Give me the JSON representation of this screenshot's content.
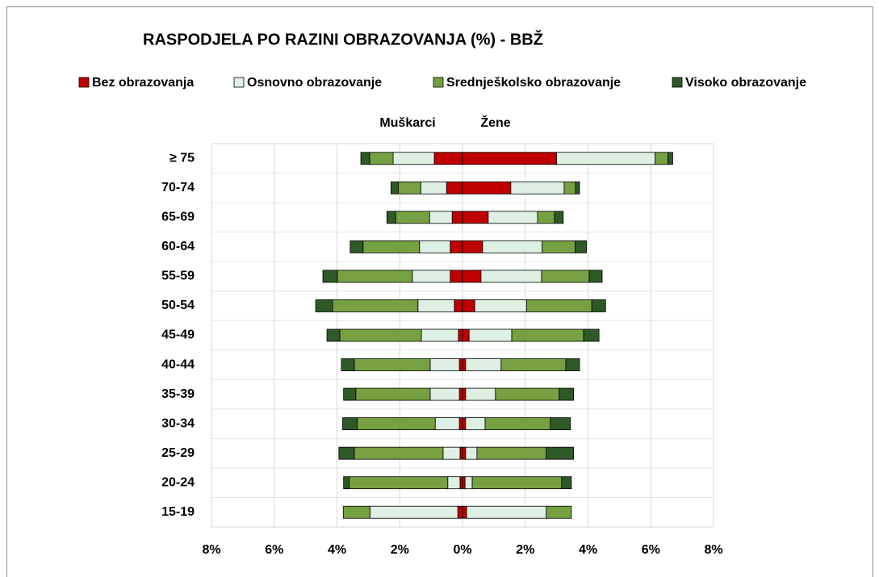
{
  "chart_data": {
    "type": "pyramid",
    "title": "RASPODJELA PO RAZINI OBRAZOVANJA (%) - BBŽ",
    "left_label": "Muškarci",
    "right_label": "Žene",
    "categories": [
      "≥ 75",
      "70-74",
      "65-69",
      "60-64",
      "55-59",
      "50-54",
      "45-49",
      "40-44",
      "35-39",
      "30-34",
      "25-29",
      "20-24",
      "15-19"
    ],
    "series": [
      {
        "name": "Bez obrazovanja",
        "color": "#c00000",
        "men": [
          -0.9,
          -0.51,
          -0.33,
          -0.39,
          -0.39,
          -0.26,
          -0.13,
          -0.1,
          -0.1,
          -0.1,
          -0.08,
          -0.08,
          -0.15
        ],
        "women": [
          3.0,
          1.54,
          0.82,
          0.64,
          0.59,
          0.39,
          0.21,
          0.1,
          0.1,
          0.1,
          0.1,
          0.08,
          0.13
        ]
      },
      {
        "name": "Osnovno obrazovanje",
        "color": "#deefe3",
        "men": [
          -1.31,
          -0.82,
          -0.72,
          -0.98,
          -1.21,
          -1.16,
          -1.18,
          -0.93,
          -0.93,
          -0.77,
          -0.54,
          -0.39,
          -2.8
        ],
        "women": [
          3.14,
          1.7,
          1.57,
          1.9,
          1.93,
          1.65,
          1.36,
          1.13,
          0.95,
          0.62,
          0.36,
          0.23,
          2.54
        ]
      },
      {
        "name": "Srednješkolsko obrazovanje",
        "color": "#77a043",
        "men": [
          -0.75,
          -0.72,
          -1.08,
          -1.8,
          -2.39,
          -2.72,
          -2.6,
          -2.42,
          -2.37,
          -2.49,
          -2.83,
          -3.14,
          -0.85
        ],
        "women": [
          0.41,
          0.36,
          0.54,
          1.05,
          1.52,
          2.08,
          2.29,
          2.06,
          2.03,
          2.08,
          2.21,
          2.85,
          0.8
        ]
      },
      {
        "name": "Visoko obrazovanje",
        "color": "#2e5a28",
        "men": [
          -0.28,
          -0.23,
          -0.28,
          -0.41,
          -0.46,
          -0.54,
          -0.41,
          -0.41,
          -0.39,
          -0.46,
          -0.49,
          -0.18,
          0
        ],
        "women": [
          0.15,
          0.13,
          0.28,
          0.36,
          0.41,
          0.44,
          0.49,
          0.44,
          0.46,
          0.64,
          0.87,
          0.31,
          0
        ]
      }
    ],
    "xlim": [
      -8,
      8
    ],
    "xticks": [
      {
        "value": -8,
        "label": "8%"
      },
      {
        "value": -6,
        "label": "6%"
      },
      {
        "value": -4,
        "label": "4%"
      },
      {
        "value": -2,
        "label": "2%"
      },
      {
        "value": 0,
        "label": "0%"
      },
      {
        "value": 2,
        "label": "2%"
      },
      {
        "value": 4,
        "label": "4%"
      },
      {
        "value": 6,
        "label": "6%"
      },
      {
        "value": 8,
        "label": "8%"
      }
    ],
    "grid": true
  }
}
